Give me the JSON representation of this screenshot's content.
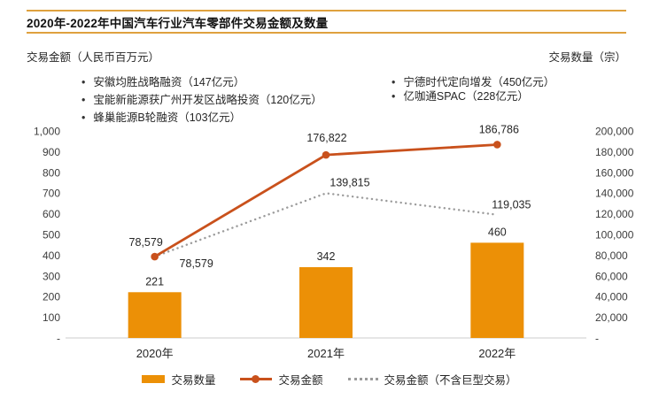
{
  "header": {
    "title": "2020年-2022年中国汽车行业汽车零部件交易金额及数量"
  },
  "axis_titles": {
    "left": "交易金额（人民币百万元）",
    "right": "交易数量（宗）"
  },
  "annotations": {
    "left": [
      "安徽均胜战略融资（147亿元）",
      "宝能新能源获广州开发区战略投资（120亿元）",
      "蜂巢能源B轮融资（103亿元）"
    ],
    "right": [
      "宁德时代定向增发（450亿元）",
      "亿咖通SPAC（228亿元）"
    ]
  },
  "chart_data": {
    "type": "bar+line combo",
    "categories": [
      "2020年",
      "2021年",
      "2022年"
    ],
    "series": [
      {
        "name": "交易数量",
        "type": "bar",
        "axis": "left",
        "values": [
          221,
          342,
          460
        ],
        "labels": [
          "221",
          "342",
          "460"
        ],
        "color": "#EC9006"
      },
      {
        "name": "交易金额",
        "type": "line",
        "axis": "right",
        "values": [
          78579,
          176822,
          186786
        ],
        "labels": [
          "78,579",
          "176,822",
          "186,786"
        ],
        "color": "#C9511C"
      },
      {
        "name": "交易金额（不含巨型交易）",
        "type": "dotted-line",
        "axis": "right",
        "values": [
          78579,
          139815,
          119035
        ],
        "labels": [
          "78,579",
          "139,815",
          "119,035"
        ],
        "color": "#9B9B9B"
      }
    ],
    "left_axis": {
      "max": 1000,
      "min": 0,
      "ticks": [
        "1,000",
        "900",
        "800",
        "700",
        "600",
        "500",
        "400",
        "300",
        "200",
        "100",
        "-"
      ]
    },
    "right_axis": {
      "max": 200000,
      "min": 0,
      "ticks": [
        "200,000",
        "180,000",
        "160,000",
        "140,000",
        "120,000",
        "100,000",
        "80,000",
        "60,000",
        "40,000",
        "20,000",
        "-"
      ]
    },
    "grid": "off",
    "legend_position": "bottom"
  },
  "colors": {
    "header_rule": "#DFA13E",
    "axis_line": "#D8D8D8",
    "bar": "#EC9006",
    "line": "#C9511C",
    "dotted": "#9B9B9B"
  }
}
